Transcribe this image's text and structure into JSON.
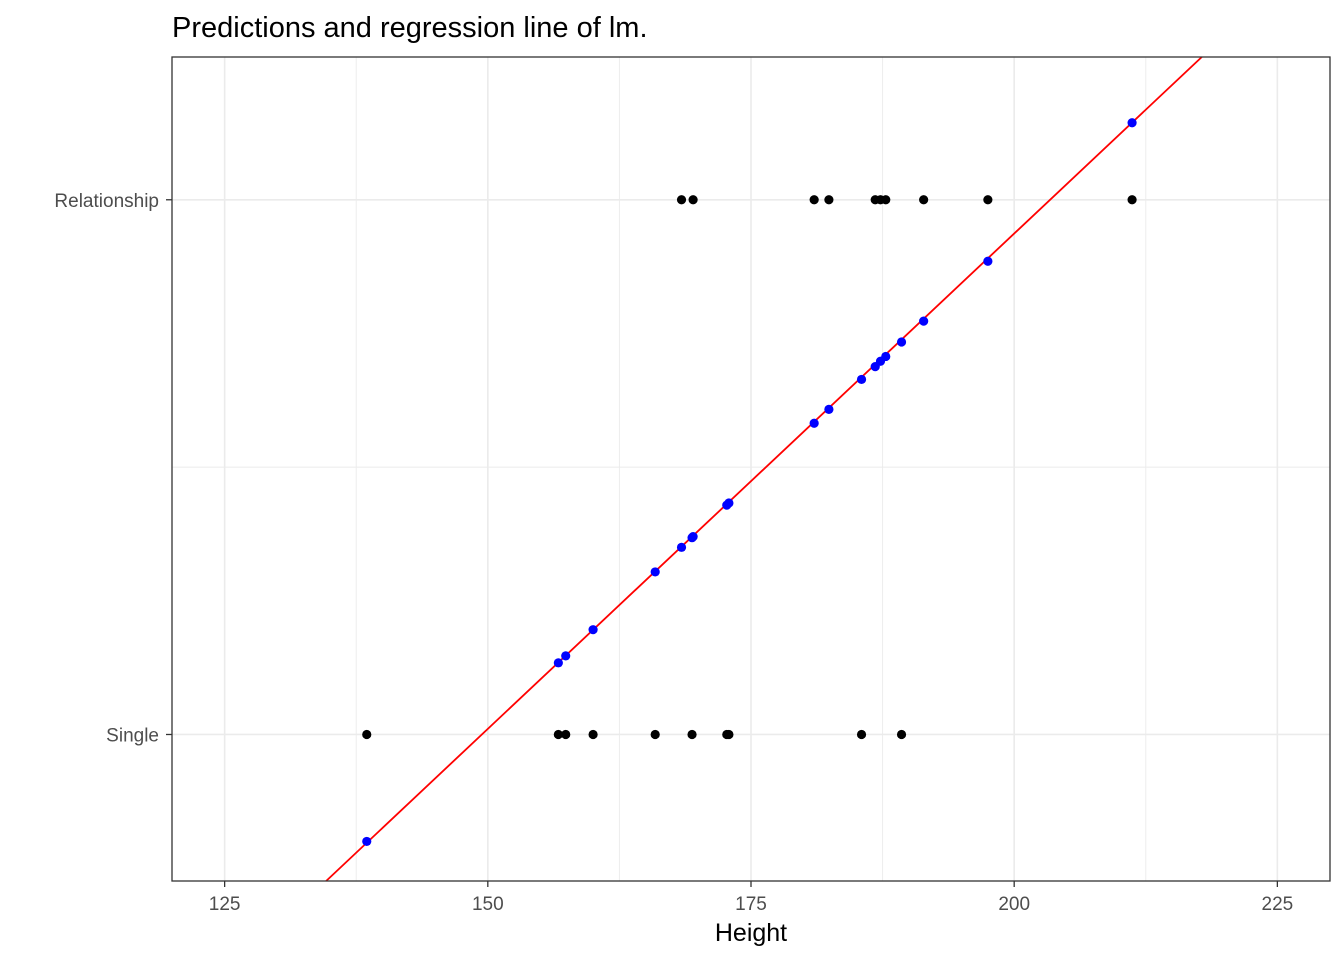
{
  "chart_data": {
    "type": "scatter",
    "title": "Predictions and regression line of lm.",
    "xlabel": "Height",
    "ylabel": "",
    "xlim": [
      120,
      230
    ],
    "xticks": [
      "125",
      "150",
      "175",
      "200",
      "225"
    ],
    "yticks": [
      "Single",
      "Relationship"
    ],
    "grid": true,
    "legend": "none",
    "colors": {
      "observed": "#000000",
      "predicted": "#0000ff",
      "regression_line": "#ff0000",
      "grid": "#ebebeb",
      "panel_border": "#333333"
    },
    "observed": [
      {
        "x": 138.5,
        "y": "Single"
      },
      {
        "x": 156.7,
        "y": "Single"
      },
      {
        "x": 157.4,
        "y": "Single"
      },
      {
        "x": 160.0,
        "y": "Single"
      },
      {
        "x": 165.9,
        "y": "Single"
      },
      {
        "x": 169.4,
        "y": "Single"
      },
      {
        "x": 172.7,
        "y": "Single"
      },
      {
        "x": 172.9,
        "y": "Single"
      },
      {
        "x": 185.5,
        "y": "Single"
      },
      {
        "x": 189.3,
        "y": "Single"
      },
      {
        "x": 168.4,
        "y": "Relationship"
      },
      {
        "x": 169.5,
        "y": "Relationship"
      },
      {
        "x": 181.0,
        "y": "Relationship"
      },
      {
        "x": 182.4,
        "y": "Relationship"
      },
      {
        "x": 186.8,
        "y": "Relationship"
      },
      {
        "x": 187.3,
        "y": "Relationship"
      },
      {
        "x": 187.8,
        "y": "Relationship"
      },
      {
        "x": 191.4,
        "y": "Relationship"
      },
      {
        "x": 197.5,
        "y": "Relationship"
      },
      {
        "x": 211.2,
        "y": "Relationship"
      }
    ],
    "predictions": [
      {
        "x": 138.5,
        "y": -0.2
      },
      {
        "x": 156.7,
        "y": 0.134
      },
      {
        "x": 157.4,
        "y": 0.147
      },
      {
        "x": 160.0,
        "y": 0.196
      },
      {
        "x": 165.9,
        "y": 0.304
      },
      {
        "x": 168.4,
        "y": 0.35
      },
      {
        "x": 169.4,
        "y": 0.368
      },
      {
        "x": 169.5,
        "y": 0.37
      },
      {
        "x": 172.7,
        "y": 0.429
      },
      {
        "x": 172.9,
        "y": 0.433
      },
      {
        "x": 181.0,
        "y": 0.582
      },
      {
        "x": 182.4,
        "y": 0.608
      },
      {
        "x": 185.5,
        "y": 0.664
      },
      {
        "x": 186.8,
        "y": 0.688
      },
      {
        "x": 187.3,
        "y": 0.698
      },
      {
        "x": 187.8,
        "y": 0.707
      },
      {
        "x": 189.3,
        "y": 0.734
      },
      {
        "x": 191.4,
        "y": 0.773
      },
      {
        "x": 197.5,
        "y": 0.885
      },
      {
        "x": 211.2,
        "y": 1.144
      }
    ],
    "regression_line": {
      "x1": 130,
      "y1": -0.36,
      "x2": 225,
      "y2": 1.4
    }
  }
}
